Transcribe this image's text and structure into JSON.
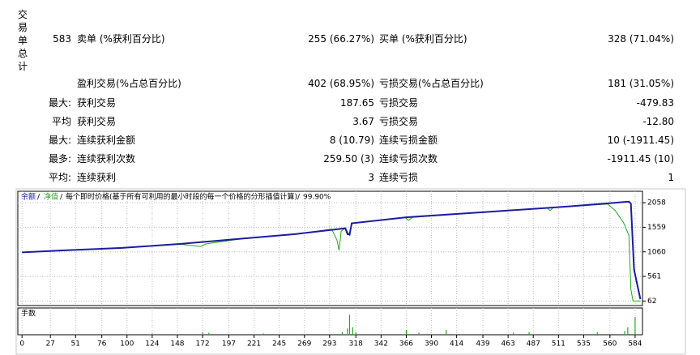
{
  "header": {
    "title": "交易单总计"
  },
  "stats": {
    "rows": [
      {
        "label": "583",
        "name1": "卖单 (%获利百分比)",
        "value1": "255 (66.27%)",
        "name2": "买单 (%获利百分比)",
        "value2": "328 (71.04%)"
      },
      {
        "name1": "盈利交易(%占总百分比)",
        "value1": "402 (68.95%)",
        "name2": "亏损交易(%占总百分比)",
        "value2": "181 (31.05%)"
      },
      {
        "label": "最大:",
        "name1": "获利交易",
        "value1": "187.65",
        "name2": "亏损交易",
        "value2": "-479.83"
      },
      {
        "label": "平均",
        "name1": "获利交易",
        "value1": "3.67",
        "name2": "亏损交易",
        "value2": "-12.80"
      },
      {
        "label": "最大:",
        "name1": "连续获利金额",
        "value1": "8 (10.79)",
        "name2": "连续亏损金额",
        "value2": "10 (-1911.45)"
      },
      {
        "label": "最多:",
        "name1": "连续获利次数",
        "value1": "259.50 (3)",
        "name2": "连续亏损次数",
        "value2": "-1911.45 (10)"
      },
      {
        "label": "平均:",
        "name1": "连续获利",
        "value1": "3",
        "name2": "连续亏损",
        "value2": "1"
      }
    ]
  },
  "chart_data": {
    "type": "line",
    "model": "每个即时价格(基于所有可利用的最小时段的每一个价格的分形插值计算)",
    "quality": "99.90%",
    "volume_label": "手数",
    "xlim": [
      -4,
      591
    ],
    "ylim": [
      -30,
      2290
    ],
    "xticks": [
      0,
      27,
      51,
      76,
      100,
      124,
      148,
      172,
      197,
      221,
      245,
      269,
      293,
      318,
      342,
      366,
      390,
      414,
      439,
      463,
      487,
      511,
      535,
      560,
      584
    ],
    "yticks": [
      2058,
      1559,
      1060,
      561,
      62
    ],
    "grid": true,
    "series": [
      {
        "name": "余额",
        "color": "#1c1ca0",
        "x": [
          0,
          40,
          95,
          150,
          211,
          260,
          304,
          308,
          310,
          312,
          314,
          365,
          443,
          520,
          578,
          580,
          583,
          588,
          589
        ],
        "values": [
          1050,
          1090,
          1140,
          1220,
          1330,
          1420,
          1530,
          1540,
          1420,
          1410,
          1640,
          1760,
          1870,
          1980,
          2080,
          2040,
          700,
          200,
          100
        ]
      },
      {
        "name": "净值",
        "color": "#22a822",
        "x": [
          0,
          40,
          95,
          150,
          170,
          175,
          211,
          260,
          295,
          300,
          302,
          304,
          308,
          312,
          314,
          365,
          368,
          372,
          443,
          500,
          503,
          506,
          558,
          565,
          573,
          578,
          580,
          582,
          589
        ],
        "values": [
          1050,
          1090,
          1140,
          1215,
          1170,
          1220,
          1330,
          1420,
          1520,
          1300,
          1090,
          1480,
          1540,
          1400,
          1640,
          1760,
          1700,
          1760,
          1870,
          1950,
          1900,
          1960,
          2030,
          1900,
          1650,
          1400,
          300,
          62,
          62
        ]
      }
    ],
    "volume": {
      "color": "#22a822",
      "ylim": [
        0,
        1
      ],
      "x": [
        124,
        172,
        178,
        230,
        305,
        310,
        312,
        315,
        318,
        366,
        378,
        404,
        468,
        483,
        548,
        574,
        577,
        584
      ],
      "values": [
        0.05,
        0.1,
        0.08,
        0.05,
        0.1,
        0.25,
        0.8,
        0.3,
        0.1,
        0.2,
        0.08,
        0.2,
        0.08,
        0.1,
        0.1,
        0.15,
        0.3,
        0.7
      ]
    }
  }
}
